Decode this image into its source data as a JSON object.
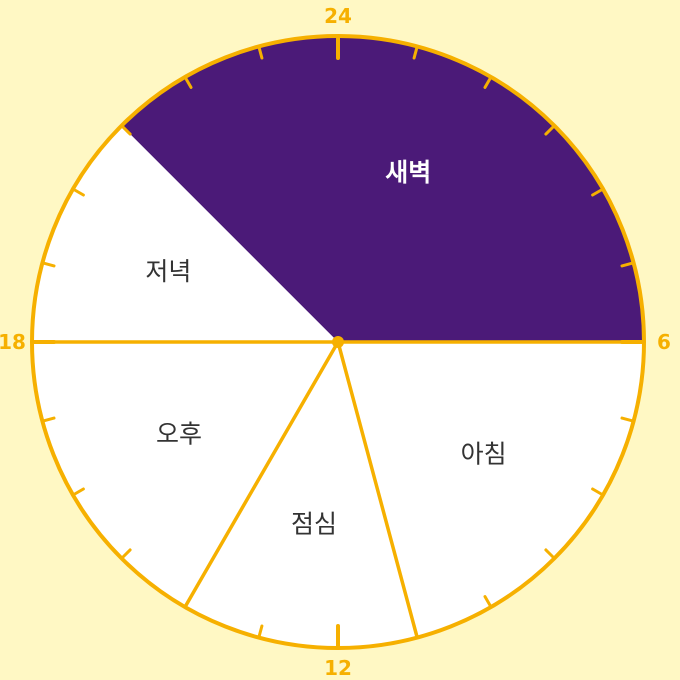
{
  "colors": {
    "background": "#FFF8C4",
    "face": "#FFFFFF",
    "outline": "#F6B000",
    "active_segment": "#4B1A78",
    "label": "#333333",
    "active_label": "#FFFFFF"
  },
  "clock": {
    "hours_total": 24,
    "hour_labels": [
      {
        "hour": 24,
        "text": "24"
      },
      {
        "hour": 6,
        "text": "6"
      },
      {
        "hour": 12,
        "text": "12"
      },
      {
        "hour": 18,
        "text": "18"
      }
    ],
    "segments": [
      {
        "id": "dawn",
        "label": "새벽",
        "start_hour": 21,
        "end_hour": 30,
        "active": true
      },
      {
        "id": "morning",
        "label": "아침",
        "start_hour": 6,
        "end_hour": 11,
        "active": false
      },
      {
        "id": "lunch",
        "label": "점심",
        "start_hour": 11,
        "end_hour": 14,
        "active": false
      },
      {
        "id": "afternoon",
        "label": "오후",
        "start_hour": 14,
        "end_hour": 18,
        "active": false
      },
      {
        "id": "evening",
        "label": "저녁",
        "start_hour": 18,
        "end_hour": 21,
        "active": false
      }
    ]
  }
}
